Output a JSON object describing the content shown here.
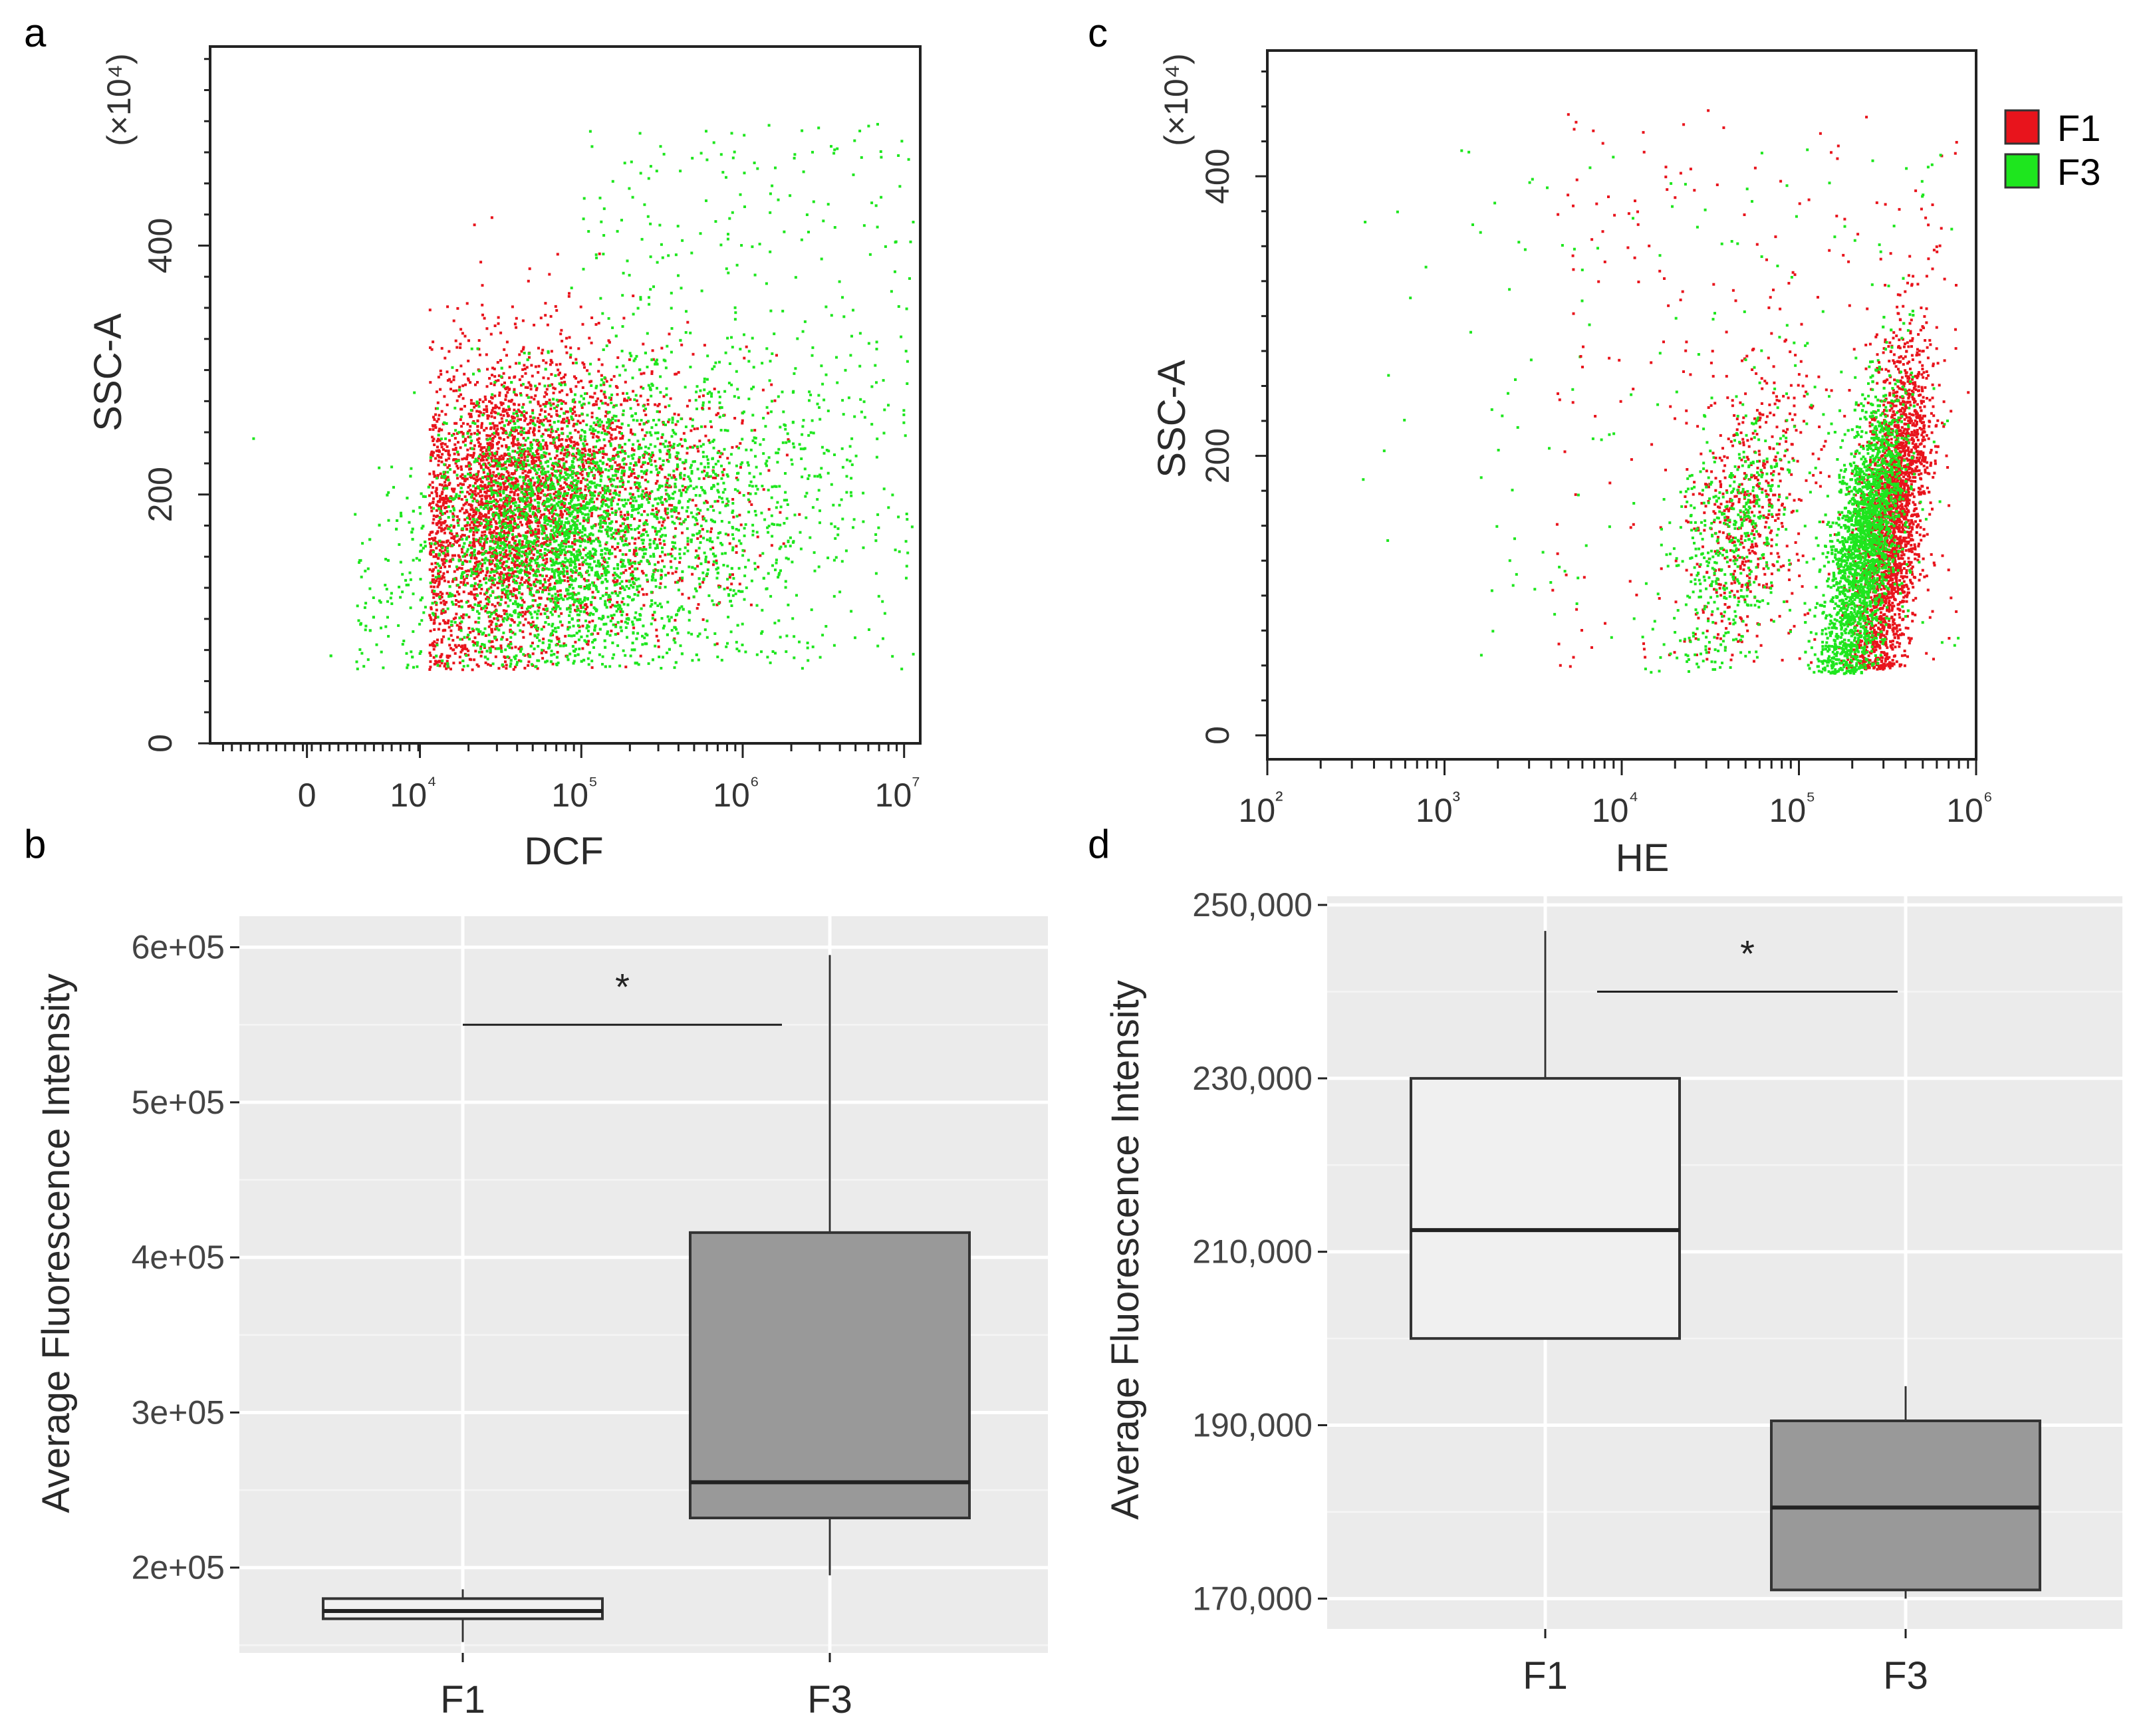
{
  "figure": {
    "panel_letters": [
      "a",
      "b",
      "c",
      "d"
    ]
  },
  "colors": {
    "F1": "#e8141c",
    "F3": "#1ee61e",
    "box_F1": "#f0f0f0",
    "box_F3": "#999999",
    "panel_bg": "#ebebeb"
  },
  "chart_data": [
    {
      "panel": "a",
      "type": "scatter",
      "title": "",
      "xlabel": "DCF",
      "ylabel": "SSC-A",
      "y_multiplier": "(×10⁴)",
      "x_scale": "biexponential",
      "x_tick_labels": [
        "0",
        "10⁴",
        "10⁵",
        "10⁶",
        "10⁷"
      ],
      "y_ticks": [
        0,
        200,
        400
      ],
      "ylim": [
        0,
        560
      ],
      "series": [
        {
          "name": "F1",
          "color": "#e8141c",
          "description": "dense cloud, log10(DCF) ~4.0–6.5, SSC-A ~60–400"
        },
        {
          "name": "F3",
          "color": "#1ee61e",
          "description": "broad cloud, log10(DCF) ~4.2–7.0, SSC-A ~60–500"
        }
      ]
    },
    {
      "panel": "b",
      "type": "box",
      "title": "",
      "xlabel": "",
      "ylabel": "Average Fluorescence Intensity",
      "categories": [
        "F1",
        "F3"
      ],
      "y_ticks": [
        200000,
        300000,
        400000,
        500000,
        600000
      ],
      "y_tick_labels": [
        "2e+05",
        "3e+05",
        "4e+05",
        "5e+05",
        "6e+05"
      ],
      "ylim": [
        145000,
        620000
      ],
      "boxes": [
        {
          "name": "F1",
          "min": 152000,
          "q1": 167000,
          "median": 172000,
          "q3": 180000,
          "max": 186000
        },
        {
          "name": "F3",
          "min": 195000,
          "q1": 232000,
          "median": 255000,
          "q3": 416000,
          "max": 595000
        }
      ],
      "significance": {
        "label": "*",
        "y": 550000,
        "from": "F1",
        "to": "F3"
      }
    },
    {
      "panel": "c",
      "type": "scatter",
      "title": "",
      "xlabel": "HE",
      "ylabel": "SSC-A",
      "y_multiplier": "(×10⁴)",
      "x_scale": "log",
      "x_tick_labels": [
        "10²",
        "10³",
        "10⁴",
        "10⁵",
        "10⁶"
      ],
      "y_ticks": [
        0,
        200,
        400
      ],
      "ylim": [
        0,
        470
      ],
      "series": [
        {
          "name": "F1",
          "color": "#e8141c",
          "description": "main cluster log10(HE) ~5.1–5.8, SSC-A ~50–380; minor cluster ~4.6"
        },
        {
          "name": "F3",
          "color": "#1ee61e",
          "description": "main cluster log10(HE) ~5.0–5.6, SSC-A ~40–300; minor cluster ~4.6"
        }
      ]
    },
    {
      "panel": "d",
      "type": "box",
      "title": "",
      "xlabel": "",
      "ylabel": "Average Fluorescence Intensity",
      "categories": [
        "F1",
        "F3"
      ],
      "y_ticks": [
        170000,
        190000,
        210000,
        230000,
        250000
      ],
      "y_tick_labels": [
        "170,000",
        "190,000",
        "210,000",
        "230,000",
        "250,000"
      ],
      "ylim": [
        166500,
        251000
      ],
      "boxes": [
        {
          "name": "F1",
          "min": 200000,
          "q1": 200000,
          "median": 212500,
          "q3": 230000,
          "max": 247000
        },
        {
          "name": "F3",
          "min": 170000,
          "q1": 171000,
          "median": 180500,
          "q3": 190500,
          "max": 194500
        }
      ],
      "significance": {
        "label": "*",
        "y": 240000,
        "from": "F1",
        "to": "F3"
      }
    }
  ],
  "legend": {
    "entries": [
      {
        "label": "F1",
        "color": "#e8141c"
      },
      {
        "label": "F3",
        "color": "#1ee61e"
      }
    ]
  }
}
